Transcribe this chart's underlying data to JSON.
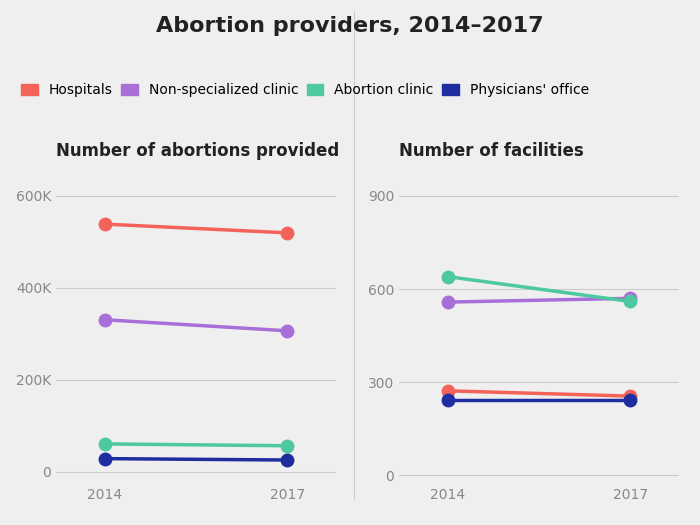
{
  "title": "Abortion providers, 2014–2017",
  "left_title": "Number of abortions provided",
  "right_title": "Number of facilities",
  "years": [
    2014,
    2017
  ],
  "series": [
    {
      "label": "Hospitals",
      "color": "#F4635A",
      "abortions": [
        538000,
        519000
      ],
      "facilities": [
        272,
        255
      ]
    },
    {
      "label": "Non-specialized clinic",
      "color": "#A86FD8",
      "abortions": [
        330000,
        306000
      ],
      "facilities": [
        558,
        570
      ]
    },
    {
      "label": "Abortion clinic",
      "color": "#4DC8A0",
      "abortions": [
        60000,
        56000
      ],
      "facilities": [
        640,
        560
      ]
    },
    {
      "label": "Physicians' office",
      "color": "#1E2DA0",
      "abortions": [
        28000,
        25000
      ],
      "facilities": [
        242,
        242
      ]
    }
  ],
  "left_yticks": [
    0,
    200000,
    400000,
    600000
  ],
  "left_ytick_labels": [
    "0",
    "200K",
    "400K",
    "600K"
  ],
  "left_ylim": [
    -25000,
    660000
  ],
  "right_yticks": [
    0,
    300,
    600,
    900
  ],
  "right_ytick_labels": [
    "0",
    "300",
    "600",
    "900"
  ],
  "right_ylim": [
    -25,
    990
  ],
  "background_color": "#EFEFEF",
  "line_width": 2.5,
  "marker_size": 10,
  "title_fontsize": 16,
  "subtitle_fontsize": 12,
  "tick_fontsize": 10,
  "legend_fontsize": 10
}
